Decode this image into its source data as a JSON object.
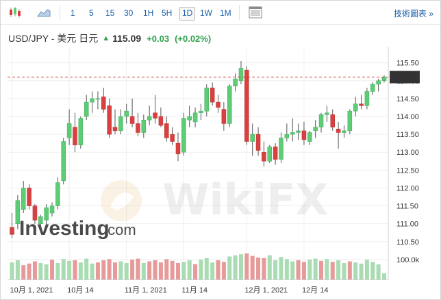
{
  "toolbar": {
    "timeframes": [
      "1",
      "5",
      "15",
      "30",
      "1H",
      "5H",
      "1D",
      "1W",
      "1M"
    ],
    "active_timeframe": "1D",
    "tech_chart_label": "技術圖表",
    "chevron": "»"
  },
  "quote": {
    "symbol": "USD/JPY - 美元 日元",
    "last": "115.09",
    "change": "+0.03",
    "change_pct": "(+0.02%)",
    "direction": "up"
  },
  "watermark": {
    "investing": "Investing",
    "dotcom": ".com",
    "wikifx": "WikiFX"
  },
  "colors": {
    "up": "#5ecb75",
    "down": "#d94141",
    "vol_up": "#a9dcb2",
    "vol_down": "#e69a9a",
    "grid": "#eeeeee",
    "price_line": "#c0392b",
    "link": "#1a5fa8"
  },
  "chart_data": {
    "type": "candlestick",
    "current_price_label": "115.10",
    "current_price": 115.1,
    "y_ticks": [
      "115.50",
      "115.00",
      "114.50",
      "114.00",
      "113.50",
      "113.00",
      "112.50",
      "112.00",
      "111.50",
      "111.00",
      "110.50"
    ],
    "ylim": [
      110.4,
      115.8
    ],
    "volume_tick": "100.0k",
    "x_labels": [
      {
        "index": 0,
        "label": "10月 1, 2021"
      },
      {
        "index": 10,
        "label": "10月 14"
      },
      {
        "index": 20,
        "label": "11月 1, 2021"
      },
      {
        "index": 30,
        "label": "11月 14"
      },
      {
        "index": 41,
        "label": "12月 1, 2021"
      },
      {
        "index": 51,
        "label": "12月 14"
      }
    ],
    "ohlc": [
      [
        110.9,
        111.3,
        110.6,
        110.7
      ],
      [
        111.0,
        111.8,
        110.85,
        111.65
      ],
      [
        111.4,
        112.2,
        111.3,
        112.0
      ],
      [
        112.0,
        112.1,
        111.4,
        111.5
      ],
      [
        111.5,
        111.55,
        111.0,
        111.1
      ],
      [
        111.0,
        111.25,
        110.75,
        111.2
      ],
      [
        111.1,
        111.55,
        110.95,
        111.45
      ],
      [
        111.3,
        111.6,
        111.2,
        111.5
      ],
      [
        111.5,
        112.3,
        111.4,
        112.15
      ],
      [
        112.2,
        113.4,
        112.1,
        113.3
      ],
      [
        113.4,
        114.2,
        113.2,
        113.8
      ],
      [
        113.7,
        114.1,
        113.0,
        113.2
      ],
      [
        113.2,
        114.0,
        113.1,
        113.95
      ],
      [
        114.0,
        114.6,
        113.9,
        114.4
      ],
      [
        114.4,
        114.7,
        114.1,
        114.5
      ],
      [
        114.5,
        114.7,
        114.2,
        114.5
      ],
      [
        114.55,
        114.8,
        114.1,
        114.2
      ],
      [
        114.3,
        114.5,
        113.4,
        113.5
      ],
      [
        113.7,
        114.2,
        113.5,
        113.6
      ],
      [
        113.6,
        114.2,
        113.5,
        114.0
      ],
      [
        114.0,
        114.35,
        113.8,
        114.15
      ],
      [
        114.0,
        114.5,
        113.7,
        113.8
      ],
      [
        113.8,
        114.1,
        113.45,
        113.55
      ],
      [
        113.55,
        114.05,
        113.4,
        113.9
      ],
      [
        113.9,
        114.3,
        113.75,
        114.0
      ],
      [
        114.1,
        114.6,
        113.8,
        113.95
      ],
      [
        114.0,
        114.25,
        113.7,
        113.75
      ],
      [
        113.8,
        114.0,
        113.3,
        113.4
      ],
      [
        113.5,
        113.7,
        113.2,
        113.3
      ],
      [
        113.25,
        113.55,
        112.75,
        112.95
      ],
      [
        113.0,
        114.1,
        112.9,
        113.95
      ],
      [
        113.9,
        114.3,
        113.7,
        114.0
      ],
      [
        113.85,
        114.25,
        113.7,
        114.1
      ],
      [
        114.1,
        114.35,
        113.9,
        114.15
      ],
      [
        114.15,
        114.9,
        114.0,
        114.8
      ],
      [
        114.8,
        114.95,
        114.3,
        114.4
      ],
      [
        114.4,
        114.6,
        114.1,
        114.25
      ],
      [
        114.2,
        114.4,
        113.6,
        113.8
      ],
      [
        113.8,
        114.9,
        113.7,
        114.85
      ],
      [
        114.85,
        115.2,
        114.7,
        115.05
      ],
      [
        115.0,
        115.55,
        114.9,
        115.35
      ],
      [
        115.3,
        115.4,
        113.2,
        113.3
      ],
      [
        113.3,
        113.8,
        112.9,
        113.5
      ],
      [
        113.5,
        113.7,
        112.9,
        113.05
      ],
      [
        113.0,
        113.3,
        112.6,
        112.75
      ],
      [
        112.75,
        113.2,
        112.7,
        113.15
      ],
      [
        113.15,
        113.25,
        112.65,
        112.8
      ],
      [
        112.8,
        113.55,
        112.7,
        113.4
      ],
      [
        113.4,
        113.8,
        113.3,
        113.5
      ],
      [
        113.5,
        113.95,
        113.3,
        113.55
      ],
      [
        113.55,
        113.8,
        113.35,
        113.6
      ],
      [
        113.6,
        113.85,
        113.2,
        113.35
      ],
      [
        113.3,
        113.6,
        113.2,
        113.55
      ],
      [
        113.6,
        113.9,
        113.4,
        113.7
      ],
      [
        113.7,
        114.1,
        113.55,
        114.05
      ],
      [
        114.05,
        114.3,
        113.85,
        114.1
      ],
      [
        114.05,
        114.2,
        113.6,
        113.7
      ],
      [
        113.65,
        113.85,
        113.1,
        113.55
      ],
      [
        113.55,
        113.75,
        113.4,
        113.6
      ],
      [
        113.6,
        114.2,
        113.5,
        114.15
      ],
      [
        114.15,
        114.55,
        114.0,
        114.35
      ],
      [
        114.35,
        114.6,
        114.2,
        114.3
      ],
      [
        114.3,
        114.8,
        114.2,
        114.7
      ],
      [
        114.7,
        114.95,
        114.6,
        114.9
      ],
      [
        114.9,
        115.05,
        114.7,
        115.0
      ],
      [
        115.0,
        115.15,
        114.95,
        115.1
      ]
    ],
    "volume": [
      [
        62,
        "up"
      ],
      [
        70,
        "up"
      ],
      [
        52,
        "down"
      ],
      [
        58,
        "down"
      ],
      [
        66,
        "down"
      ],
      [
        60,
        "up"
      ],
      [
        55,
        "up"
      ],
      [
        72,
        "down"
      ],
      [
        60,
        "up"
      ],
      [
        74,
        "up"
      ],
      [
        68,
        "up"
      ],
      [
        70,
        "down"
      ],
      [
        62,
        "up"
      ],
      [
        76,
        "up"
      ],
      [
        58,
        "up"
      ],
      [
        62,
        "down"
      ],
      [
        70,
        "down"
      ],
      [
        74,
        "down"
      ],
      [
        62,
        "down"
      ],
      [
        66,
        "up"
      ],
      [
        60,
        "up"
      ],
      [
        72,
        "down"
      ],
      [
        76,
        "down"
      ],
      [
        60,
        "up"
      ],
      [
        66,
        "down"
      ],
      [
        70,
        "down"
      ],
      [
        62,
        "down"
      ],
      [
        74,
        "down"
      ],
      [
        68,
        "down"
      ],
      [
        60,
        "down"
      ],
      [
        64,
        "up"
      ],
      [
        70,
        "up"
      ],
      [
        56,
        "down"
      ],
      [
        72,
        "up"
      ],
      [
        78,
        "up"
      ],
      [
        62,
        "up"
      ],
      [
        70,
        "down"
      ],
      [
        64,
        "down"
      ],
      [
        84,
        "up"
      ],
      [
        88,
        "up"
      ],
      [
        92,
        "up"
      ],
      [
        95,
        "down"
      ],
      [
        86,
        "down"
      ],
      [
        80,
        "down"
      ],
      [
        78,
        "down"
      ],
      [
        88,
        "up"
      ],
      [
        70,
        "up"
      ],
      [
        82,
        "up"
      ],
      [
        74,
        "up"
      ],
      [
        66,
        "up"
      ],
      [
        70,
        "down"
      ],
      [
        64,
        "down"
      ],
      [
        72,
        "up"
      ],
      [
        76,
        "up"
      ],
      [
        68,
        "down"
      ],
      [
        74,
        "up"
      ],
      [
        64,
        "down"
      ],
      [
        70,
        "up"
      ],
      [
        60,
        "up"
      ],
      [
        66,
        "down"
      ],
      [
        62,
        "up"
      ],
      [
        58,
        "up"
      ],
      [
        72,
        "up"
      ],
      [
        64,
        "up"
      ],
      [
        55,
        "up"
      ],
      [
        22,
        "up"
      ]
    ]
  }
}
